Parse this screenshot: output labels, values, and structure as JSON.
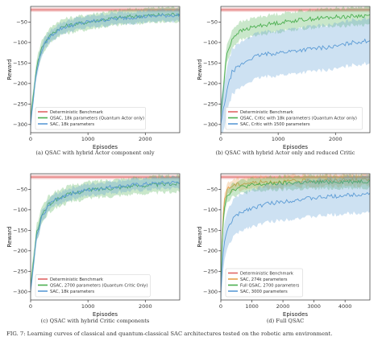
{
  "figure": {
    "caption": "FIG. 7: Learning curves of classical and quantum-classical SAC architectures tested on the robotic arm environment."
  },
  "chart_data": [
    {
      "type": "line",
      "caption": "(a) QSAC with hybrid Actor component only",
      "xlabel": "Episodes",
      "ylabel": "Reward",
      "xlim": [
        0,
        2600
      ],
      "ylim": [
        -320,
        -12
      ],
      "xticks": [
        0,
        1000,
        2000
      ],
      "yticks": [
        -300,
        -250,
        -200,
        -150,
        -100,
        -50
      ],
      "legend_position": "lower-left",
      "grid": false,
      "series": [
        {
          "name": "Deterministic Benchmark",
          "color": "#e06666",
          "band": [
            -25,
            -15
          ],
          "x": [
            0,
            2600
          ],
          "values": [
            -20,
            -20
          ]
        },
        {
          "name": "QSAC, 18k parameters (Quantum Actor only)",
          "color": "#4caf50",
          "band_width": 18,
          "x": [
            0,
            100,
            200,
            300,
            400,
            500,
            600,
            800,
            1000,
            1200,
            1500,
            1800,
            2100,
            2400,
            2600
          ],
          "values": [
            -290,
            -160,
            -110,
            -90,
            -75,
            -65,
            -60,
            -55,
            -50,
            -45,
            -40,
            -36,
            -34,
            -32,
            -30
          ]
        },
        {
          "name": "SAC, 18k parameters",
          "color": "#5b9bd5",
          "band_width": 14,
          "x": [
            0,
            100,
            200,
            300,
            400,
            500,
            600,
            800,
            1000,
            1200,
            1500,
            1800,
            2100,
            2400,
            2600
          ],
          "values": [
            -300,
            -170,
            -115,
            -92,
            -78,
            -68,
            -62,
            -55,
            -50,
            -46,
            -42,
            -38,
            -36,
            -34,
            -33
          ]
        }
      ]
    },
    {
      "type": "line",
      "caption": "(b) QSAC with hybrid Actor only and reduced Critic",
      "xlabel": "Episodes",
      "ylabel": "Reward",
      "xlim": [
        0,
        2600
      ],
      "ylim": [
        -320,
        -12
      ],
      "xticks": [
        0,
        1000,
        2000
      ],
      "yticks": [
        -300,
        -250,
        -200,
        -150,
        -100,
        -50
      ],
      "legend_position": "lower-left",
      "grid": false,
      "series": [
        {
          "name": "Deterministic Benchmark",
          "color": "#e06666",
          "band": [
            -25,
            -15
          ],
          "x": [
            0,
            2600
          ],
          "values": [
            -20,
            -20
          ]
        },
        {
          "name": "QSAC, Critic with 18k parameters (Quantum Actor only)",
          "color": "#4caf50",
          "band_width": 22,
          "x": [
            0,
            100,
            200,
            300,
            500,
            700,
            1000,
            1300,
            1600,
            2000,
            2300,
            2600
          ],
          "values": [
            -280,
            -130,
            -90,
            -75,
            -65,
            -58,
            -52,
            -46,
            -42,
            -38,
            -36,
            -34
          ]
        },
        {
          "name": "SAC, Critic with 1500 parameters",
          "color": "#5b9bd5",
          "band_width": 55,
          "x": [
            0,
            100,
            200,
            300,
            500,
            700,
            1000,
            1300,
            1600,
            2000,
            2300,
            2600
          ],
          "values": [
            -300,
            -220,
            -170,
            -160,
            -140,
            -130,
            -125,
            -120,
            -115,
            -110,
            -100,
            -95
          ]
        }
      ]
    },
    {
      "type": "line",
      "caption": "(c) QSAC with hybrid Critic components",
      "xlabel": "Episodes",
      "ylabel": "Reward",
      "xlim": [
        0,
        2600
      ],
      "ylim": [
        -320,
        -12
      ],
      "xticks": [
        0,
        1000,
        2000
      ],
      "yticks": [
        -300,
        -250,
        -200,
        -150,
        -100,
        -50
      ],
      "legend_position": "lower-left",
      "grid": false,
      "series": [
        {
          "name": "Deterministic Benchmark",
          "color": "#e06666",
          "band": [
            -25,
            -15
          ],
          "x": [
            0,
            2600
          ],
          "values": [
            -20,
            -20
          ]
        },
        {
          "name": "QSAC, 2700 parameters (Quantum Critic Only)",
          "color": "#4caf50",
          "band_width": 20,
          "x": [
            0,
            100,
            200,
            300,
            400,
            600,
            800,
            1000,
            1300,
            1600,
            2000,
            2300,
            2600
          ],
          "values": [
            -290,
            -160,
            -110,
            -90,
            -78,
            -65,
            -58,
            -52,
            -48,
            -44,
            -40,
            -38,
            -36
          ]
        },
        {
          "name": "SAC, 18k parameters",
          "color": "#5b9bd5",
          "band_width": 14,
          "x": [
            0,
            100,
            200,
            300,
            400,
            600,
            800,
            1000,
            1300,
            1600,
            2000,
            2300,
            2600
          ],
          "values": [
            -300,
            -170,
            -115,
            -92,
            -78,
            -65,
            -57,
            -52,
            -46,
            -42,
            -38,
            -35,
            -33
          ]
        }
      ]
    },
    {
      "type": "line",
      "caption": "(d) Full QSAC",
      "xlabel": "Episodes",
      "ylabel": "Reward",
      "xlim": [
        0,
        4800
      ],
      "ylim": [
        -320,
        -12
      ],
      "xticks": [
        0,
        1000,
        2000,
        3000,
        4000
      ],
      "yticks": [
        -300,
        -250,
        -200,
        -150,
        -100,
        -50
      ],
      "legend_position": "lower-left",
      "grid": false,
      "series": [
        {
          "name": "Deterministic Benchmark",
          "color": "#e06666",
          "band": [
            -25,
            -15
          ],
          "x": [
            0,
            4800
          ],
          "values": [
            -20,
            -20
          ]
        },
        {
          "name": "SAC, 274k parameters",
          "color": "#e8a04c",
          "band_width": 14,
          "x": [
            0,
            50,
            100,
            200,
            400,
            800,
            1500,
            2500,
            3500,
            4800
          ],
          "values": [
            -300,
            -150,
            -80,
            -50,
            -40,
            -35,
            -32,
            -30,
            -28,
            -27
          ]
        },
        {
          "name": "Full QSAC, 2700 parameters",
          "color": "#4caf50",
          "band_width": 16,
          "x": [
            0,
            50,
            100,
            200,
            400,
            800,
            1500,
            2500,
            3500,
            4800
          ],
          "values": [
            -290,
            -160,
            -100,
            -65,
            -50,
            -42,
            -37,
            -34,
            -32,
            -30
          ]
        },
        {
          "name": "SAC, 3000 parameters",
          "color": "#5b9bd5",
          "band_width": 45,
          "x": [
            0,
            50,
            100,
            200,
            400,
            800,
            1500,
            2500,
            3500,
            4800
          ],
          "values": [
            -300,
            -230,
            -190,
            -150,
            -120,
            -100,
            -85,
            -75,
            -68,
            -60
          ]
        }
      ]
    }
  ]
}
